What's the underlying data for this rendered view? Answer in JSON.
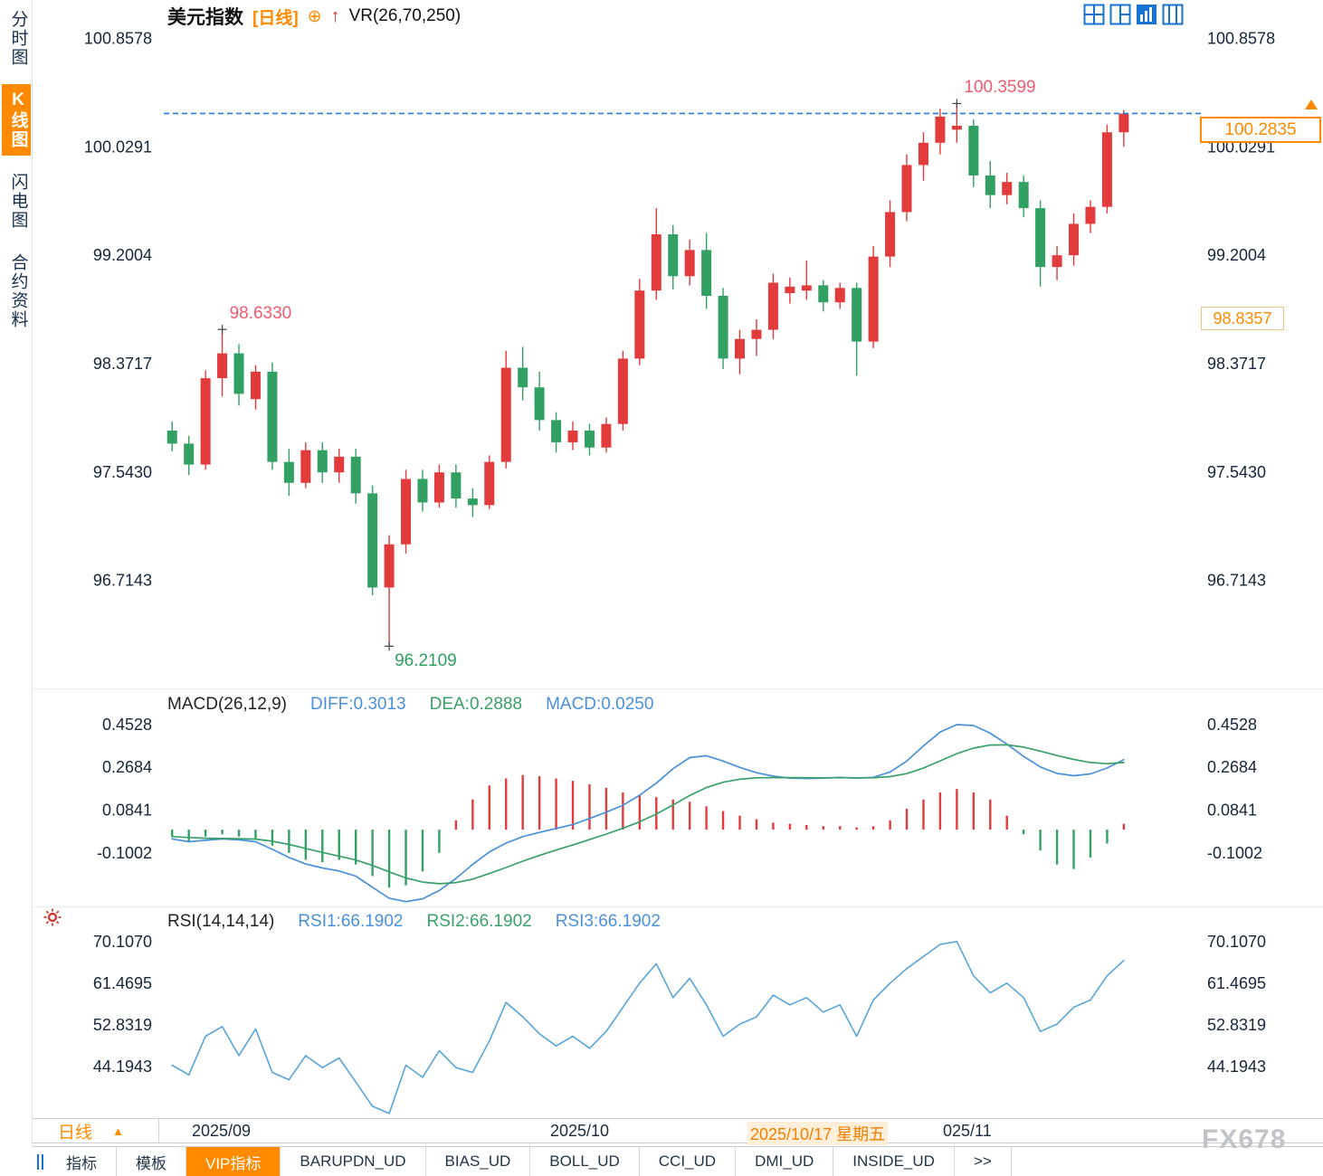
{
  "watermark": "FX678",
  "colors": {
    "accent_orange": "#ff8a00",
    "up_red": "#e23b3b",
    "down_green": "#33a063",
    "diff_blue": "#4a90d9",
    "dea_green": "#3aa06a",
    "rsi_line": "#58a4d8",
    "annotation_pink": "#ef5b6e",
    "annotation_green": "#2e9e5e",
    "dashed_line_blue": "#2277dd",
    "icon_blue": "#1673d2",
    "axis_text": "#15253a"
  },
  "sidebar": {
    "items": [
      {
        "label": "分时图",
        "active": false
      },
      {
        "label": "K线图",
        "active": true
      },
      {
        "label": "闪电图",
        "active": false
      },
      {
        "label": "合约资料",
        "active": false
      }
    ]
  },
  "header": {
    "symbol": "美元指数",
    "period_tag": "[日线]",
    "circle_plus_icon": "⊕",
    "up_arrow_icon": "↑",
    "vr_indicator": "VR(26,70,250)"
  },
  "period_row": {
    "period": "日线",
    "arrow": "▲",
    "dates": [
      {
        "text": "2025/09",
        "x": 212,
        "highlight": false
      },
      {
        "text": "2025/10",
        "x": 608,
        "highlight": false
      },
      {
        "text": "2025/10/17 星期五",
        "x": 826,
        "highlight": true
      },
      {
        "text": "025/11",
        "x": 1042,
        "highlight": false
      }
    ]
  },
  "bottom_tabs": [
    {
      "label": "指标",
      "active": false
    },
    {
      "label": "模板",
      "active": false
    },
    {
      "label": "VIP指标",
      "active": true
    },
    {
      "label": "BARUPDN_UD",
      "active": false
    },
    {
      "label": "BIAS_UD",
      "active": false
    },
    {
      "label": "BOLL_UD",
      "active": false
    },
    {
      "label": "CCI_UD",
      "active": false
    },
    {
      "label": "DMI_UD",
      "active": false
    },
    {
      "label": "INSIDE_UD",
      "active": false
    },
    {
      "label": ">>",
      "active": false
    }
  ],
  "chart_data": [
    {
      "type": "candlestick",
      "title": "美元指数 [日线]",
      "yticks": [
        "100.8578",
        "100.0291",
        "99.2004",
        "98.3717",
        "97.5430",
        "96.7143"
      ],
      "ylim": [
        95.93,
        100.93
      ],
      "grid": false,
      "annotations": {
        "high": {
          "text": "100.3599",
          "candle": 48
        },
        "swing_high": {
          "text": "98.6330",
          "candle": 4
        },
        "low": {
          "text": "96.2109",
          "candle": 14
        },
        "last_price": "100.2835",
        "ref_price": "98.8357"
      },
      "ohlc": [
        [
          97.86,
          97.93,
          97.7,
          97.76
        ],
        [
          97.76,
          97.82,
          97.52,
          97.6
        ],
        [
          97.6,
          98.32,
          97.56,
          98.26
        ],
        [
          98.26,
          98.633,
          98.12,
          98.45
        ],
        [
          98.45,
          98.52,
          98.05,
          98.14
        ],
        [
          98.1,
          98.36,
          98.02,
          98.31
        ],
        [
          98.31,
          98.38,
          97.56,
          97.62
        ],
        [
          97.62,
          97.72,
          97.36,
          97.46
        ],
        [
          97.46,
          97.77,
          97.42,
          97.71
        ],
        [
          97.71,
          97.77,
          97.46,
          97.54
        ],
        [
          97.54,
          97.72,
          97.46,
          97.66
        ],
        [
          97.66,
          97.72,
          97.3,
          97.38
        ],
        [
          97.38,
          97.44,
          96.6,
          96.66
        ],
        [
          96.66,
          97.06,
          96.2109,
          96.99
        ],
        [
          96.99,
          97.56,
          96.92,
          97.49
        ],
        [
          97.49,
          97.56,
          97.24,
          97.31
        ],
        [
          97.31,
          97.6,
          97.27,
          97.54
        ],
        [
          97.54,
          97.6,
          97.27,
          97.34
        ],
        [
          97.34,
          97.42,
          97.2,
          97.29
        ],
        [
          97.29,
          97.67,
          97.26,
          97.62
        ],
        [
          97.62,
          98.47,
          97.57,
          98.34
        ],
        [
          98.34,
          98.5,
          98.09,
          98.19
        ],
        [
          98.19,
          98.31,
          97.86,
          97.94
        ],
        [
          97.94,
          98.0,
          97.69,
          97.77
        ],
        [
          97.77,
          97.93,
          97.71,
          97.86
        ],
        [
          97.86,
          97.91,
          97.67,
          97.73
        ],
        [
          97.73,
          97.96,
          97.69,
          97.91
        ],
        [
          97.91,
          98.47,
          97.86,
          98.41
        ],
        [
          98.41,
          99.02,
          98.36,
          98.93
        ],
        [
          98.93,
          99.56,
          98.86,
          99.36
        ],
        [
          99.36,
          99.43,
          98.94,
          99.04
        ],
        [
          99.04,
          99.32,
          98.97,
          99.24
        ],
        [
          99.24,
          99.37,
          98.79,
          98.89
        ],
        [
          98.89,
          98.95,
          98.33,
          98.41
        ],
        [
          98.41,
          98.63,
          98.29,
          98.56
        ],
        [
          98.56,
          98.71,
          98.43,
          98.63
        ],
        [
          98.63,
          99.06,
          98.56,
          98.99
        ],
        [
          98.91,
          99.03,
          98.83,
          98.96
        ],
        [
          98.93,
          99.16,
          98.86,
          98.97
        ],
        [
          98.97,
          99.01,
          98.77,
          98.84
        ],
        [
          98.84,
          98.99,
          98.79,
          98.95
        ],
        [
          98.95,
          98.99,
          98.28,
          98.54
        ],
        [
          98.54,
          99.27,
          98.49,
          99.19
        ],
        [
          99.19,
          99.62,
          99.11,
          99.53
        ],
        [
          99.53,
          99.97,
          99.46,
          99.89
        ],
        [
          99.89,
          100.14,
          99.77,
          100.06
        ],
        [
          100.06,
          100.32,
          99.97,
          100.26
        ],
        [
          100.16,
          100.3599,
          100.06,
          100.19
        ],
        [
          100.19,
          100.24,
          99.72,
          99.81
        ],
        [
          99.81,
          99.92,
          99.56,
          99.66
        ],
        [
          99.66,
          99.83,
          99.59,
          99.76
        ],
        [
          99.76,
          99.81,
          99.49,
          99.56
        ],
        [
          99.56,
          99.62,
          98.96,
          99.11
        ],
        [
          99.11,
          99.27,
          99.01,
          99.2
        ],
        [
          99.2,
          99.52,
          99.12,
          99.44
        ],
        [
          99.44,
          99.62,
          99.37,
          99.57
        ],
        [
          99.57,
          100.2,
          99.52,
          100.14
        ],
        [
          100.14,
          100.31,
          100.03,
          100.2835
        ]
      ]
    },
    {
      "type": "bar",
      "title": "MACD(26,12,9)",
      "labels": {
        "diff": "DIFF:0.3013",
        "dea": "DEA:0.2888",
        "macd": "MACD:0.0250"
      },
      "yticks": [
        "0.4528",
        "0.2684",
        "0.0841",
        "-0.1002"
      ],
      "diff": [
        -0.04,
        -0.052,
        -0.046,
        -0.04,
        -0.044,
        -0.052,
        -0.085,
        -0.12,
        -0.148,
        -0.165,
        -0.178,
        -0.2,
        -0.248,
        -0.295,
        -0.31,
        -0.298,
        -0.262,
        -0.21,
        -0.15,
        -0.096,
        -0.058,
        -0.03,
        -0.012,
        0.005,
        0.022,
        0.048,
        0.075,
        0.105,
        0.148,
        0.2,
        0.262,
        0.31,
        0.318,
        0.295,
        0.268,
        0.245,
        0.23,
        0.222,
        0.22,
        0.222,
        0.225,
        0.222,
        0.225,
        0.248,
        0.295,
        0.36,
        0.42,
        0.452,
        0.448,
        0.415,
        0.368,
        0.315,
        0.27,
        0.242,
        0.232,
        0.24,
        0.265,
        0.3013
      ],
      "dea": [
        -0.03,
        -0.034,
        -0.037,
        -0.038,
        -0.039,
        -0.041,
        -0.05,
        -0.064,
        -0.081,
        -0.098,
        -0.114,
        -0.131,
        -0.154,
        -0.182,
        -0.208,
        -0.226,
        -0.233,
        -0.228,
        -0.213,
        -0.189,
        -0.163,
        -0.136,
        -0.111,
        -0.088,
        -0.066,
        -0.043,
        -0.019,
        0.006,
        0.034,
        0.067,
        0.106,
        0.147,
        0.181,
        0.204,
        0.217,
        0.223,
        0.224,
        0.224,
        0.223,
        0.223,
        0.223,
        0.223,
        0.223,
        0.228,
        0.241,
        0.265,
        0.296,
        0.327,
        0.351,
        0.364,
        0.365,
        0.355,
        0.338,
        0.319,
        0.302,
        0.289,
        0.284,
        0.2888
      ],
      "hist": [
        -0.03,
        -0.05,
        -0.03,
        -0.02,
        -0.03,
        -0.04,
        -0.07,
        -0.1,
        -0.13,
        -0.14,
        -0.13,
        -0.15,
        -0.2,
        -0.25,
        -0.24,
        -0.18,
        -0.1,
        0.04,
        0.13,
        0.19,
        0.22,
        0.235,
        0.23,
        0.22,
        0.21,
        0.195,
        0.18,
        0.16,
        0.15,
        0.14,
        0.13,
        0.12,
        0.1,
        0.08,
        0.06,
        0.045,
        0.03,
        0.025,
        0.02,
        0.015,
        0.015,
        0.01,
        0.015,
        0.04,
        0.09,
        0.13,
        0.16,
        0.175,
        0.16,
        0.13,
        0.06,
        -0.02,
        -0.09,
        -0.15,
        -0.17,
        -0.12,
        -0.06,
        0.025
      ]
    },
    {
      "type": "line",
      "title": "RSI(14,14,14)",
      "labels": {
        "rsi1": "RSI1:66.1902",
        "rsi2": "RSI2:66.1902",
        "rsi3": "RSI3:66.1902"
      },
      "yticks": [
        "70.1070",
        "61.4695",
        "52.8319",
        "44.1943"
      ],
      "values": [
        44.5,
        42.5,
        50.5,
        52.5,
        46.5,
        52.0,
        43.0,
        41.5,
        46.5,
        44.0,
        46.0,
        41.0,
        36.0,
        34.5,
        44.5,
        42.0,
        47.5,
        44.0,
        43.0,
        49.5,
        57.5,
        54.5,
        51.0,
        48.5,
        50.5,
        48.0,
        51.5,
        56.5,
        61.5,
        65.5,
        58.5,
        62.5,
        57.0,
        50.5,
        53.0,
        54.5,
        59.0,
        57.0,
        58.5,
        55.5,
        57.0,
        50.5,
        58.0,
        61.5,
        64.5,
        67.0,
        69.5,
        70.1,
        63.0,
        59.5,
        61.5,
        58.5,
        51.5,
        53.0,
        56.5,
        58.0,
        63.0,
        66.19
      ]
    }
  ]
}
